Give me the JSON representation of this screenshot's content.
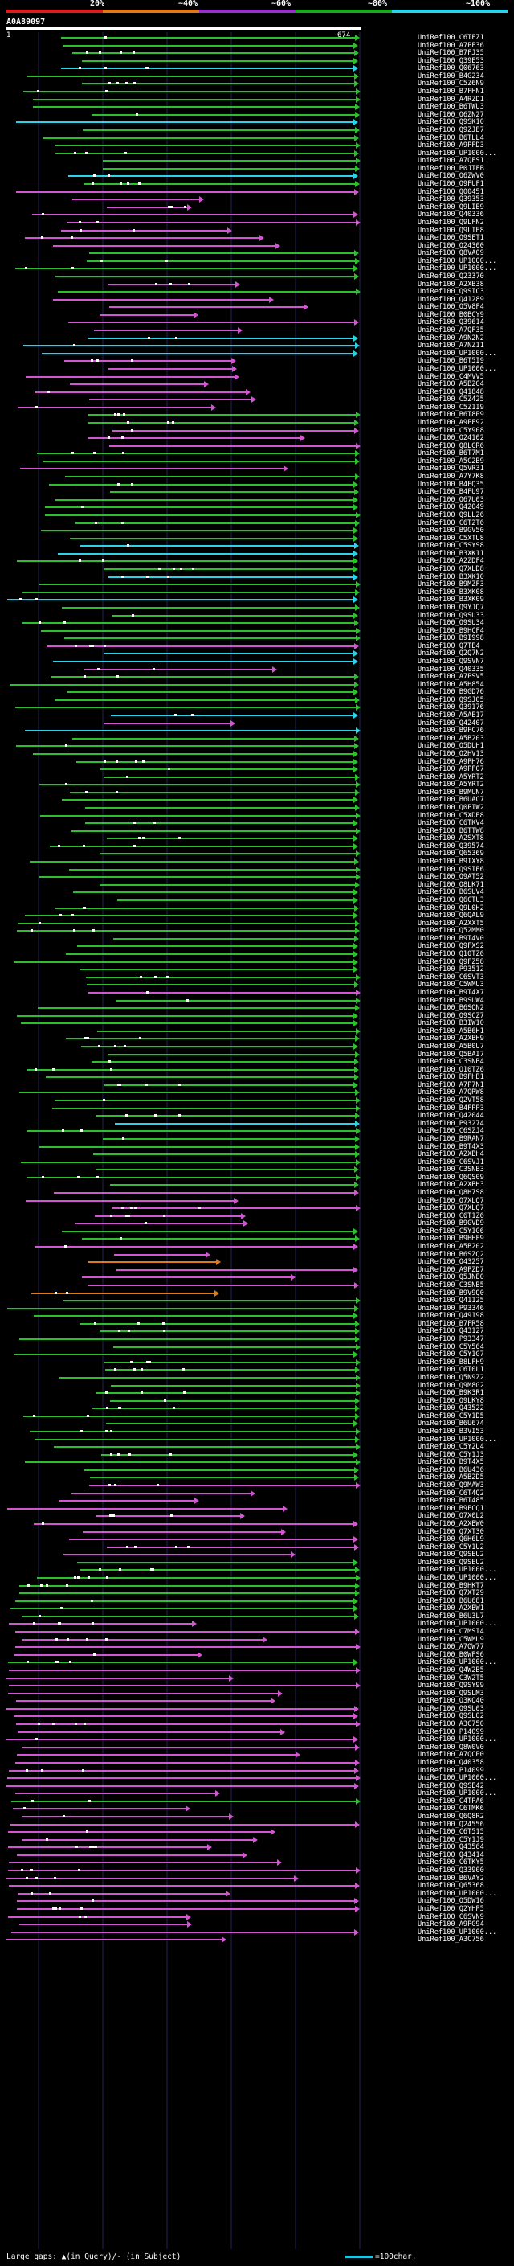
{
  "scale": {
    "labels": [
      "20%",
      "~40%",
      "~60%",
      "~80%",
      "~100%"
    ],
    "colors": [
      "#d81e1e",
      "#e07a18",
      "#9632c8",
      "#1ca81c",
      "#2ad2ea"
    ]
  },
  "query": {
    "id": "A0A89097",
    "start": "1",
    "end": "674"
  },
  "colors": {
    "magenta": "#d255d2",
    "green": "#2cc02c",
    "cyan": "#2ad2ea",
    "orange": "#e07a18",
    "grid": "#22225a"
  },
  "legend": {
    "text": "Large gaps: ▲(in Query)/- (in Subject)",
    "scale": "=100char."
  },
  "hits": [
    {
      "label": "UniRef100_C6TFZ1",
      "color": "green"
    },
    {
      "label": "UniRef100_A7PF36",
      "color": "green"
    },
    {
      "label": "UniRef100_B7FJ35",
      "color": "green"
    },
    {
      "label": "UniRef100_Q39E53",
      "color": "green"
    },
    {
      "label": "UniRef100_Q06763",
      "color": "cyan"
    },
    {
      "label": "UniRef100_B4G234",
      "color": "green"
    },
    {
      "label": "UniRef100_C5Z6N9",
      "color": "green"
    },
    {
      "label": "UniRef100_B7FHN1",
      "color": "green"
    },
    {
      "label": "UniRef100_A4RZD1",
      "color": "green"
    },
    {
      "label": "UniRef100_B6TWU3",
      "color": "green"
    },
    {
      "label": "UniRef100_Q6ZN27",
      "color": "green"
    },
    {
      "label": "UniRef100_Q9SK10",
      "color": "cyan"
    },
    {
      "label": "UniRef100_Q9ZJE7",
      "color": "green"
    },
    {
      "label": "UniRef100_B6TLL4",
      "color": "green"
    },
    {
      "label": "UniRef100_A9PFD3",
      "color": "green"
    },
    {
      "label": "UniRef100_UP1000...",
      "color": "green"
    },
    {
      "label": "UniRef100_A7QFS1",
      "color": "green"
    },
    {
      "label": "UniRef100_P0JTFB",
      "color": "green"
    },
    {
      "label": "UniRef100_Q6ZWV0",
      "color": "cyan"
    },
    {
      "label": "UniRef100_Q9FUF1",
      "color": "green"
    },
    {
      "label": "UniRef100_Q00451",
      "color": "magenta"
    },
    {
      "label": "UniRef100_Q39353",
      "color": "magenta"
    },
    {
      "label": "UniRef100_Q9LIE9",
      "color": "magenta"
    },
    {
      "label": "UniRef100_Q40336",
      "color": "magenta"
    },
    {
      "label": "UniRef100_Q9LFN2",
      "color": "magenta"
    },
    {
      "label": "UniRef100_Q9LIE8",
      "color": "magenta"
    },
    {
      "label": "UniRef100_Q9SET1",
      "color": "magenta"
    },
    {
      "label": "UniRef100_Q24300",
      "color": "magenta"
    },
    {
      "label": "UniRef100_Q8VA09",
      "color": "green"
    },
    {
      "label": "UniRef100_UP1000...",
      "color": "green"
    },
    {
      "label": "UniRef100_UP1000...",
      "color": "green"
    },
    {
      "label": "UniRef100_Q23370",
      "color": "green"
    },
    {
      "label": "UniRef100_A2XB38",
      "color": "magenta"
    },
    {
      "label": "UniRef100_Q9SIC3",
      "color": "green"
    },
    {
      "label": "UniRef100_Q41289",
      "color": "magenta"
    },
    {
      "label": "UniRef100_Q5V8F4",
      "color": "magenta"
    },
    {
      "label": "UniRef100_B0BCY9",
      "color": "magenta"
    },
    {
      "label": "UniRef100_Q39614",
      "color": "magenta"
    },
    {
      "label": "UniRef100_A7QF35",
      "color": "magenta"
    },
    {
      "label": "UniRef100_A9N2N2",
      "color": "cyan"
    },
    {
      "label": "UniRef100_A7NZ11",
      "color": "cyan"
    },
    {
      "label": "UniRef100_UP1000...",
      "color": "cyan"
    },
    {
      "label": "UniRef100_B6T5I9",
      "color": "magenta"
    },
    {
      "label": "UniRef100_UP1000...",
      "color": "magenta"
    },
    {
      "label": "UniRef100_C4MVV5",
      "color": "magenta"
    },
    {
      "label": "UniRef100_A5B2G4",
      "color": "magenta"
    },
    {
      "label": "UniRef100_Q41848",
      "color": "magenta"
    },
    {
      "label": "UniRef100_C5Z425",
      "color": "magenta"
    },
    {
      "label": "UniRef100_C5Z1I9",
      "color": "magenta"
    },
    {
      "label": "UniRef100_B6T8P9",
      "color": "green"
    },
    {
      "label": "UniRef100_A9PF92",
      "color": "green"
    },
    {
      "label": "UniRef100_C5Y908",
      "color": "magenta"
    },
    {
      "label": "UniRef100_Q24102",
      "color": "magenta"
    },
    {
      "label": "UniRef100_Q8LGR6",
      "color": "magenta"
    },
    {
      "label": "UniRef100_B6T7M1",
      "color": "green"
    },
    {
      "label": "UniRef100_A5C2B9",
      "color": "green"
    },
    {
      "label": "UniRef100_Q5VR31",
      "color": "magenta"
    },
    {
      "label": "UniRef100_A7Y7K8",
      "color": "green"
    },
    {
      "label": "UniRef100_B4FQ35",
      "color": "green"
    },
    {
      "label": "UniRef100_B4FU97",
      "color": "green"
    },
    {
      "label": "UniRef100_Q67U03",
      "color": "green"
    },
    {
      "label": "UniRef100_Q42049",
      "color": "green"
    },
    {
      "label": "UniRef100_Q9LL26",
      "color": "green"
    },
    {
      "label": "UniRef100_C6T2T6",
      "color": "green"
    },
    {
      "label": "UniRef100_B9GV50",
      "color": "green"
    },
    {
      "label": "UniRef100_C5XTU8",
      "color": "green"
    },
    {
      "label": "UniRef100_C5SYS8",
      "color": "cyan"
    },
    {
      "label": "UniRef100_B3XK11",
      "color": "cyan"
    },
    {
      "label": "UniRef100_A2ZDF4",
      "color": "green"
    },
    {
      "label": "UniRef100_Q7XLD8",
      "color": "green"
    },
    {
      "label": "UniRef100_B3XK10",
      "color": "cyan"
    },
    {
      "label": "UniRef100_B9MZF3",
      "color": "green"
    },
    {
      "label": "UniRef100_B3XK08",
      "color": "green"
    },
    {
      "label": "UniRef100_B3XK09",
      "color": "cyan"
    },
    {
      "label": "UniRef100_Q9YJQ7",
      "color": "green"
    },
    {
      "label": "UniRef100_Q9SU33",
      "color": "green"
    },
    {
      "label": "UniRef100_Q9SU34",
      "color": "green"
    },
    {
      "label": "UniRef100_B9HCF4",
      "color": "green"
    },
    {
      "label": "UniRef100_B9I998",
      "color": "green"
    },
    {
      "label": "UniRef100_Q7TE4",
      "color": "magenta"
    },
    {
      "label": "UniRef100_Q2Q7N2",
      "color": "cyan"
    },
    {
      "label": "UniRef100_Q9SVN7",
      "color": "cyan"
    },
    {
      "label": "UniRef100_Q40335",
      "color": "magenta"
    },
    {
      "label": "UniRef100_A7PSV5",
      "color": "green"
    },
    {
      "label": "UniRef100_A5H854",
      "color": "green"
    },
    {
      "label": "UniRef100_B9GD76",
      "color": "green"
    },
    {
      "label": "UniRef100_Q9SJ05",
      "color": "green"
    },
    {
      "label": "UniRef100_Q39176",
      "color": "green"
    },
    {
      "label": "UniRef100_A5AE17",
      "color": "cyan"
    },
    {
      "label": "UniRef100_Q42407",
      "color": "magenta"
    },
    {
      "label": "UniRef100_B9FC76",
      "color": "cyan"
    },
    {
      "label": "UniRef100_A5B203",
      "color": "green"
    },
    {
      "label": "UniRef100_Q5DUH1",
      "color": "green"
    },
    {
      "label": "UniRef100_Q2HV13",
      "color": "green"
    },
    {
      "label": "UniRef100_A9PH76",
      "color": "green"
    },
    {
      "label": "UniRef100_A9PF07",
      "color": "green"
    },
    {
      "label": "UniRef100_A5YRT2",
      "color": "green"
    },
    {
      "label": "UniRef100_A5YRT2",
      "color": "green"
    },
    {
      "label": "UniRef100_B9MUN7",
      "color": "green"
    },
    {
      "label": "UniRef100_B6UAC7",
      "color": "green"
    },
    {
      "label": "UniRef100_Q0PIW2",
      "color": "green"
    },
    {
      "label": "UniRef100_C5XDE8",
      "color": "green"
    },
    {
      "label": "UniRef100_C6TKV4",
      "color": "green"
    },
    {
      "label": "UniRef100_B6TTW8",
      "color": "green"
    },
    {
      "label": "UniRef100_A2SXT8",
      "color": "green"
    },
    {
      "label": "UniRef100_Q39574",
      "color": "green"
    },
    {
      "label": "UniRef100_Q65369",
      "color": "green"
    },
    {
      "label": "UniRef100_B9IXY8",
      "color": "green"
    },
    {
      "label": "UniRef100_Q9SIE6",
      "color": "green"
    },
    {
      "label": "UniRef100_Q9AT52",
      "color": "green"
    },
    {
      "label": "UniRef100_Q8LK71",
      "color": "green"
    },
    {
      "label": "UniRef100_B6SUV4",
      "color": "green"
    },
    {
      "label": "UniRef100_Q6CTU3",
      "color": "green"
    },
    {
      "label": "UniRef100_Q9L0H2",
      "color": "green"
    },
    {
      "label": "UniRef100_Q6QAL9",
      "color": "green"
    },
    {
      "label": "UniRef100_A2XXT5",
      "color": "green"
    },
    {
      "label": "UniRef100_Q52MM0",
      "color": "green"
    },
    {
      "label": "UniRef100_B9T4V0",
      "color": "green"
    },
    {
      "label": "UniRef100_Q9FXS2",
      "color": "green"
    },
    {
      "label": "UniRef100_Q10TZ6",
      "color": "green"
    },
    {
      "label": "UniRef100_Q9FZ58",
      "color": "green"
    },
    {
      "label": "UniRef100_P93512",
      "color": "green"
    },
    {
      "label": "UniRef100_C6SVT3",
      "color": "green"
    },
    {
      "label": "UniRef100_C5WMU3",
      "color": "green"
    },
    {
      "label": "UniRef100_B9T4X7",
      "color": "magenta"
    },
    {
      "label": "UniRef100_B9SUW4",
      "color": "green"
    },
    {
      "label": "UniRef100_B6SQN2",
      "color": "green"
    },
    {
      "label": "UniRef100_Q9SCZ7",
      "color": "green"
    },
    {
      "label": "UniRef100_B3IW10",
      "color": "green"
    },
    {
      "label": "UniRef100_A5B6H1",
      "color": "green"
    },
    {
      "label": "UniRef100_A2XBH9",
      "color": "green"
    },
    {
      "label": "UniRef100_A5B0U7",
      "color": "green"
    },
    {
      "label": "UniRef100_Q5BAI7",
      "color": "green"
    },
    {
      "label": "UniRef100_C3SNB4",
      "color": "green"
    },
    {
      "label": "UniRef100_Q10TZ6",
      "color": "green"
    },
    {
      "label": "UniRef100_B9FHB1",
      "color": "green"
    },
    {
      "label": "UniRef100_A7P7N1",
      "color": "green"
    },
    {
      "label": "UniRef100_A7QRW8",
      "color": "green"
    },
    {
      "label": "UniRef100_Q2VT58",
      "color": "green"
    },
    {
      "label": "UniRef100_B4FPP3",
      "color": "green"
    },
    {
      "label": "UniRef100_Q42044",
      "color": "green"
    },
    {
      "label": "UniRef100_P93274",
      "color": "cyan"
    },
    {
      "label": "UniRef100_C6SZJ4",
      "color": "green"
    },
    {
      "label": "UniRef100_B9RAN7",
      "color": "green"
    },
    {
      "label": "UniRef100_B9T4X3",
      "color": "green"
    },
    {
      "label": "UniRef100_A2XBH4",
      "color": "green"
    },
    {
      "label": "UniRef100_C6SVJ1",
      "color": "green"
    },
    {
      "label": "UniRef100_C3SNB3",
      "color": "green"
    },
    {
      "label": "UniRef100_Q6QS09",
      "color": "green"
    },
    {
      "label": "UniRef100_A2XBH3",
      "color": "green"
    },
    {
      "label": "UniRef100_Q8H7S8",
      "color": "magenta"
    },
    {
      "label": "UniRef100_Q7XLQ7",
      "color": "magenta"
    },
    {
      "label": "UniRef100_Q7XLQ7",
      "color": "magenta"
    },
    {
      "label": "UniRef100_C6T1Z6",
      "color": "magenta"
    },
    {
      "label": "UniRef100_B9GVD9",
      "color": "magenta"
    },
    {
      "label": "UniRef100_C5Y1G6",
      "color": "green"
    },
    {
      "label": "UniRef100_B9HHF9",
      "color": "green"
    },
    {
      "label": "UniRef100_A5B202",
      "color": "magenta"
    },
    {
      "label": "UniRef100_B6SZQ2",
      "color": "magenta"
    },
    {
      "label": "UniRef100_Q43257",
      "color": "orange"
    },
    {
      "label": "UniRef100_A9PZD7",
      "color": "magenta"
    },
    {
      "label": "UniRef100_Q5JNE0",
      "color": "magenta"
    },
    {
      "label": "UniRef100_C3SNB5",
      "color": "magenta"
    },
    {
      "label": "UniRef100_B9V9Q0",
      "color": "orange"
    },
    {
      "label": "UniRef100_Q41125",
      "color": "green"
    },
    {
      "label": "UniRef100_P93346",
      "color": "green"
    },
    {
      "label": "UniRef100_Q49198",
      "color": "green"
    },
    {
      "label": "UniRef100_B7FR58",
      "color": "green"
    },
    {
      "label": "UniRef100_Q43127",
      "color": "green"
    },
    {
      "label": "UniRef100_P93347",
      "color": "green"
    },
    {
      "label": "UniRef100_C5Y564",
      "color": "green"
    },
    {
      "label": "UniRef100_C5Y1G7",
      "color": "green"
    },
    {
      "label": "UniRef100_B8LFH9",
      "color": "green"
    },
    {
      "label": "UniRef100_C6T0L1",
      "color": "green"
    },
    {
      "label": "UniRef100_Q5N9Z2",
      "color": "green"
    },
    {
      "label": "UniRef100_Q9M8G2",
      "color": "green"
    },
    {
      "label": "UniRef100_B9K3R1",
      "color": "green"
    },
    {
      "label": "UniRef100_Q9LKY8",
      "color": "green"
    },
    {
      "label": "UniRef100_Q43522",
      "color": "green"
    },
    {
      "label": "UniRef100_C5Y1D5",
      "color": "green"
    },
    {
      "label": "UniRef100_B6U674",
      "color": "green"
    },
    {
      "label": "UniRef100_B3VI53",
      "color": "green"
    },
    {
      "label": "UniRef100_UP1000...",
      "color": "green"
    },
    {
      "label": "UniRef100_C5Y2U4",
      "color": "green"
    },
    {
      "label": "UniRef100_C5Y1J3",
      "color": "green"
    },
    {
      "label": "UniRef100_B9T4X5",
      "color": "green"
    },
    {
      "label": "UniRef100_B6U436",
      "color": "green"
    },
    {
      "label": "UniRef100_A5B2D5",
      "color": "green"
    },
    {
      "label": "UniRef100_Q9MAW3",
      "color": "magenta"
    },
    {
      "label": "UniRef100_C6T4Q2",
      "color": "magenta"
    },
    {
      "label": "UniRef100_B6T485",
      "color": "magenta"
    },
    {
      "label": "UniRef100_B9FCQ1",
      "color": "magenta"
    },
    {
      "label": "UniRef100_Q7X0L2",
      "color": "magenta"
    },
    {
      "label": "UniRef100_A2XBW0",
      "color": "magenta"
    },
    {
      "label": "UniRef100_Q7XT30",
      "color": "magenta"
    },
    {
      "label": "UniRef100_Q6H6L9",
      "color": "magenta"
    },
    {
      "label": "UniRef100_C5Y1U2",
      "color": "magenta"
    },
    {
      "label": "UniRef100_Q9SEU2",
      "color": "magenta"
    },
    {
      "label": "UniRef100_Q9SEU2",
      "color": "green"
    },
    {
      "label": "UniRef100_UP1000...",
      "color": "green"
    },
    {
      "label": "UniRef100_UP1000...",
      "color": "green"
    },
    {
      "label": "UniRef100_B9HKT7",
      "color": "green"
    },
    {
      "label": "UniRef100_Q7XT29",
      "color": "green"
    },
    {
      "label": "UniRef100_B6U681",
      "color": "green"
    },
    {
      "label": "UniRef100_A2XBW1",
      "color": "green"
    },
    {
      "label": "UniRef100_B6U3L7",
      "color": "green"
    },
    {
      "label": "UniRef100_UP1000...",
      "color": "magenta"
    },
    {
      "label": "UniRef100_C7MSI4",
      "color": "magenta"
    },
    {
      "label": "UniRef100_C5WMU9",
      "color": "magenta"
    },
    {
      "label": "UniRef100_A7QW77",
      "color": "magenta"
    },
    {
      "label": "UniRef100_B0WFS6",
      "color": "magenta"
    },
    {
      "label": "UniRef100_UP1000...",
      "color": "green"
    },
    {
      "label": "UniRef100_Q4W2B5",
      "color": "magenta"
    },
    {
      "label": "UniRef100_C3W2T5",
      "color": "magenta"
    },
    {
      "label": "UniRef100_Q9SY99",
      "color": "magenta"
    },
    {
      "label": "UniRef100_Q9SLM3",
      "color": "magenta"
    },
    {
      "label": "UniRef100_Q3KQ40",
      "color": "magenta"
    },
    {
      "label": "UniRef100_Q9SU03",
      "color": "magenta"
    },
    {
      "label": "UniRef100_Q9SL02",
      "color": "magenta"
    },
    {
      "label": "UniRef100_A3C750",
      "color": "magenta"
    },
    {
      "label": "UniRef100_P14099",
      "color": "magenta"
    },
    {
      "label": "UniRef100_UP1000...",
      "color": "magenta"
    },
    {
      "label": "UniRef100_Q8W0V0",
      "color": "magenta"
    },
    {
      "label": "UniRef100_A7QCP0",
      "color": "magenta"
    },
    {
      "label": "UniRef100_Q40358",
      "color": "magenta"
    },
    {
      "label": "UniRef100_P14099",
      "color": "magenta"
    },
    {
      "label": "UniRef100_UP1000...",
      "color": "magenta"
    },
    {
      "label": "UniRef100_Q9SE42",
      "color": "magenta"
    },
    {
      "label": "UniRef100_UP1000...",
      "color": "magenta"
    },
    {
      "label": "UniRef100_C4TPA6",
      "color": "green"
    },
    {
      "label": "UniRef100_C6TMK6",
      "color": "magenta"
    },
    {
      "label": "UniRef100_Q6Q8R2",
      "color": "magenta"
    },
    {
      "label": "UniRef100_Q24556",
      "color": "magenta"
    },
    {
      "label": "UniRef100_C6T515",
      "color": "magenta"
    },
    {
      "label": "UniRef100_C5Y1J9",
      "color": "magenta"
    },
    {
      "label": "UniRef100_Q43564",
      "color": "magenta"
    },
    {
      "label": "UniRef100_Q43414",
      "color": "magenta"
    },
    {
      "label": "UniRef100_C6TKY5",
      "color": "magenta"
    },
    {
      "label": "UniRef100_Q33900",
      "color": "magenta"
    },
    {
      "label": "UniRef100_B6VAY2",
      "color": "magenta"
    },
    {
      "label": "UniRef100_Q65368",
      "color": "magenta"
    },
    {
      "label": "UniRef100_UP1000...",
      "color": "magenta"
    },
    {
      "label": "UniRef100_Q5DW16",
      "color": "magenta"
    },
    {
      "label": "UniRef100_Q2YHP5",
      "color": "magenta"
    },
    {
      "label": "UniRef100_C6SVN9",
      "color": "magenta"
    },
    {
      "label": "UniRef100_A9PG94",
      "color": "magenta"
    },
    {
      "label": "UniRef100_UP1000...",
      "color": "magenta"
    },
    {
      "label": "UniRef100_A3C756",
      "color": "magenta"
    }
  ]
}
